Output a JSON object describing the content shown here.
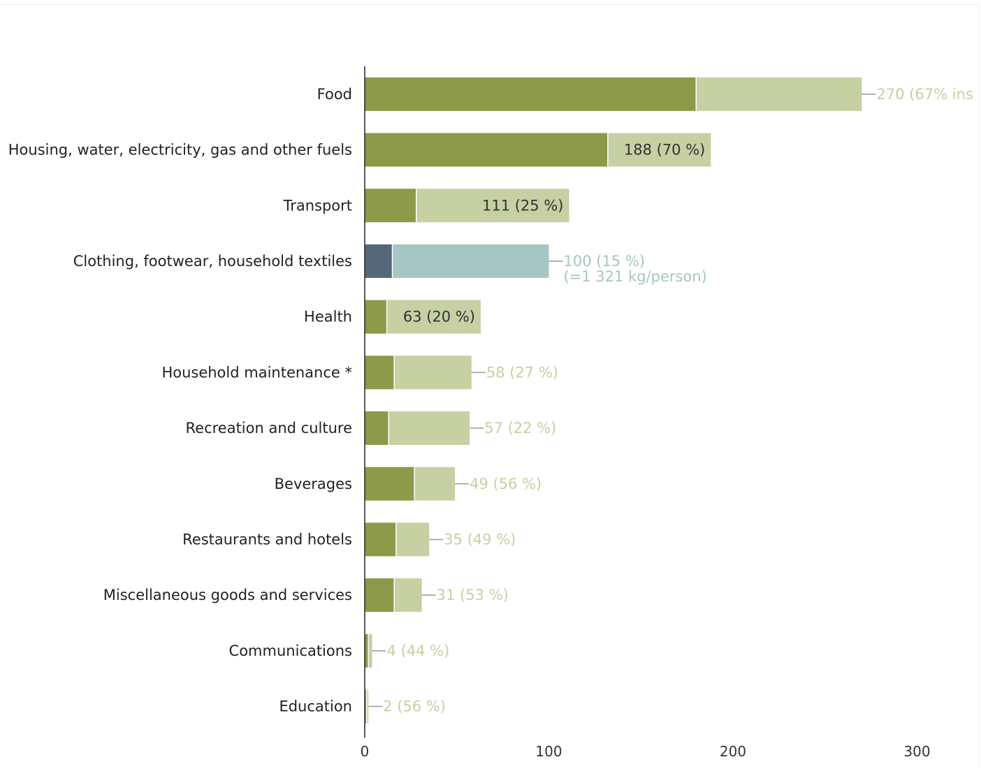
{
  "chart_data": {
    "type": "bar",
    "orientation": "horizontal",
    "stacked": true,
    "title": "",
    "xlabel": "",
    "ylabel": "",
    "xlim": [
      0,
      330
    ],
    "xticks": [
      0,
      100,
      200,
      300
    ],
    "grid": false,
    "colors": {
      "dark": "#8c9a49",
      "light": "#c6d0a2",
      "highlight_dark": "#566778",
      "highlight_light": "#a6c6c4",
      "inside_label": "#333333"
    },
    "categories": [
      {
        "name": "Food",
        "part": 180,
        "total": 270,
        "label": "270 (67% ins",
        "label_pos": "outside"
      },
      {
        "name": "Housing, water, electricity, gas and other fuels",
        "part": 132,
        "total": 188,
        "label": "188 (70 %)",
        "label_pos": "inside"
      },
      {
        "name": "Transport",
        "part": 28,
        "total": 111,
        "label": "111 (25 %)",
        "label_pos": "inside"
      },
      {
        "name": "Clothing, footwear, household textiles",
        "part": 15,
        "total": 100,
        "label": "100 (15 %)",
        "label_line2": "(=1 321 kg/person)",
        "label_pos": "outside",
        "highlight": true
      },
      {
        "name": "Health",
        "part": 12,
        "total": 63,
        "label": "63 (20 %)",
        "label_pos": "inside"
      },
      {
        "name": "Household maintenance *",
        "part": 16,
        "total": 58,
        "label": "58 (27 %)",
        "label_pos": "outside"
      },
      {
        "name": "Recreation and culture",
        "part": 13,
        "total": 57,
        "label": "57 (22 %)",
        "label_pos": "outside"
      },
      {
        "name": "Beverages",
        "part": 27,
        "total": 49,
        "label": "49 (56 %)",
        "label_pos": "outside"
      },
      {
        "name": "Restaurants and hotels",
        "part": 17,
        "total": 35,
        "label": "35 (49 %)",
        "label_pos": "outside"
      },
      {
        "name": "Miscellaneous goods and services",
        "part": 16,
        "total": 31,
        "label": "31 (53 %)",
        "label_pos": "outside"
      },
      {
        "name": "Communications",
        "part": 2,
        "total": 4,
        "label": "4 (44 %)",
        "label_pos": "outside"
      },
      {
        "name": "Education",
        "part": 1,
        "total": 2,
        "label": "2 (56 %)",
        "label_pos": "outside"
      }
    ]
  }
}
